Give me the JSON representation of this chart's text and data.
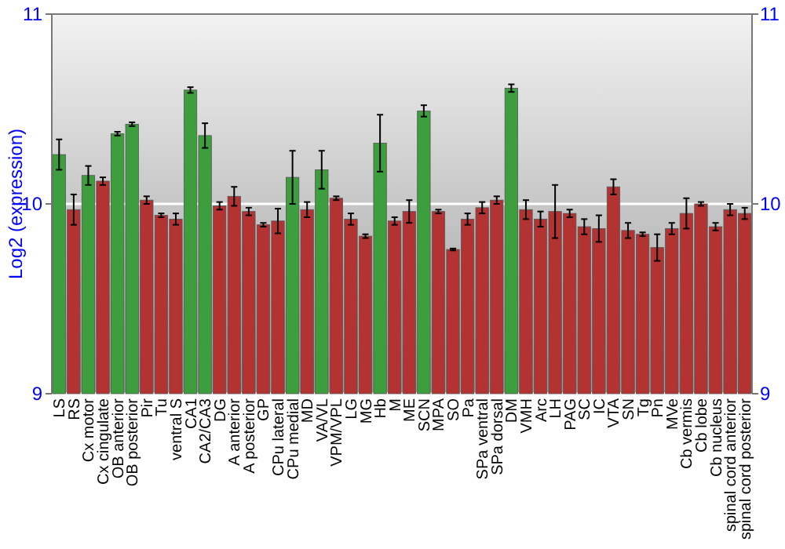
{
  "chart_data": {
    "type": "bar",
    "ylabel": "Log2 (expression)",
    "categories": [
      "LS",
      "RS",
      "Cx motor",
      "Cx cingulate",
      "OB anterior",
      "OB posterior",
      "Pir",
      "Tu",
      "ventral S",
      "CA1",
      "CA2/CA3",
      "DG",
      "A anterior",
      "A posterior",
      "GP",
      "CPu lateral",
      "CPu medial",
      "MD",
      "VA/VL",
      "VPM/VPL",
      "LG",
      "MG",
      "Hb",
      "M",
      "ME",
      "SCN",
      "MPA",
      "SO",
      "Pa",
      "SPa ventral",
      "SPa dorsal",
      "DM",
      "VMH",
      "Arc",
      "LH",
      "PAG",
      "SC",
      "IC",
      "VTA",
      "SN",
      "Tg",
      "Pn",
      "MVe",
      "Cb vermis",
      "Cb lobe",
      "Cb nucleus",
      "spinal cord anterior",
      "spinal cord posterior"
    ],
    "values": [
      10.26,
      9.97,
      10.15,
      10.12,
      10.37,
      10.42,
      10.02,
      9.94,
      9.92,
      10.6,
      10.36,
      9.99,
      10.04,
      9.96,
      9.89,
      9.91,
      10.14,
      9.97,
      10.18,
      10.03,
      9.92,
      9.83,
      10.32,
      9.91,
      9.96,
      10.49,
      9.96,
      9.76,
      9.92,
      9.98,
      10.02,
      10.61,
      9.97,
      9.92,
      9.96,
      9.95,
      9.88,
      9.87,
      10.09,
      9.86,
      9.84,
      9.77,
      9.87,
      9.95,
      10.0,
      9.88,
      9.97,
      9.95
    ],
    "errors": [
      0.08,
      0.08,
      0.05,
      0.02,
      0.01,
      0.01,
      0.02,
      0.01,
      0.03,
      0.015,
      0.065,
      0.02,
      0.05,
      0.02,
      0.01,
      0.065,
      0.14,
      0.04,
      0.1,
      0.01,
      0.03,
      0.01,
      0.15,
      0.02,
      0.06,
      0.03,
      0.01,
      0.005,
      0.03,
      0.03,
      0.02,
      0.02,
      0.05,
      0.04,
      0.14,
      0.02,
      0.04,
      0.07,
      0.04,
      0.04,
      0.01,
      0.07,
      0.03,
      0.08,
      0.01,
      0.02,
      0.03,
      0.03
    ],
    "colors": [
      "#3c9e3c",
      "#b33333",
      "#3c9e3c",
      "#b33333",
      "#3c9e3c",
      "#3c9e3c",
      "#b33333",
      "#b33333",
      "#b33333",
      "#3c9e3c",
      "#3c9e3c",
      "#b33333",
      "#b33333",
      "#b33333",
      "#b33333",
      "#b33333",
      "#3c9e3c",
      "#b33333",
      "#3c9e3c",
      "#b33333",
      "#b33333",
      "#b33333",
      "#3c9e3c",
      "#b33333",
      "#b33333",
      "#3c9e3c",
      "#b33333",
      "#b33333",
      "#b33333",
      "#b33333",
      "#b33333",
      "#3c9e3c",
      "#b33333",
      "#b33333",
      "#b33333",
      "#b33333",
      "#b33333",
      "#b33333",
      "#b33333",
      "#b33333",
      "#b33333",
      "#b33333",
      "#b33333",
      "#b33333",
      "#b33333",
      "#b33333",
      "#b33333",
      "#b33333"
    ],
    "ylim": [
      9,
      11
    ],
    "yticks": [
      9,
      10,
      11
    ],
    "y2lim": [
      9,
      11
    ],
    "y2ticks": [
      9,
      10,
      11
    ],
    "grid": "y"
  }
}
